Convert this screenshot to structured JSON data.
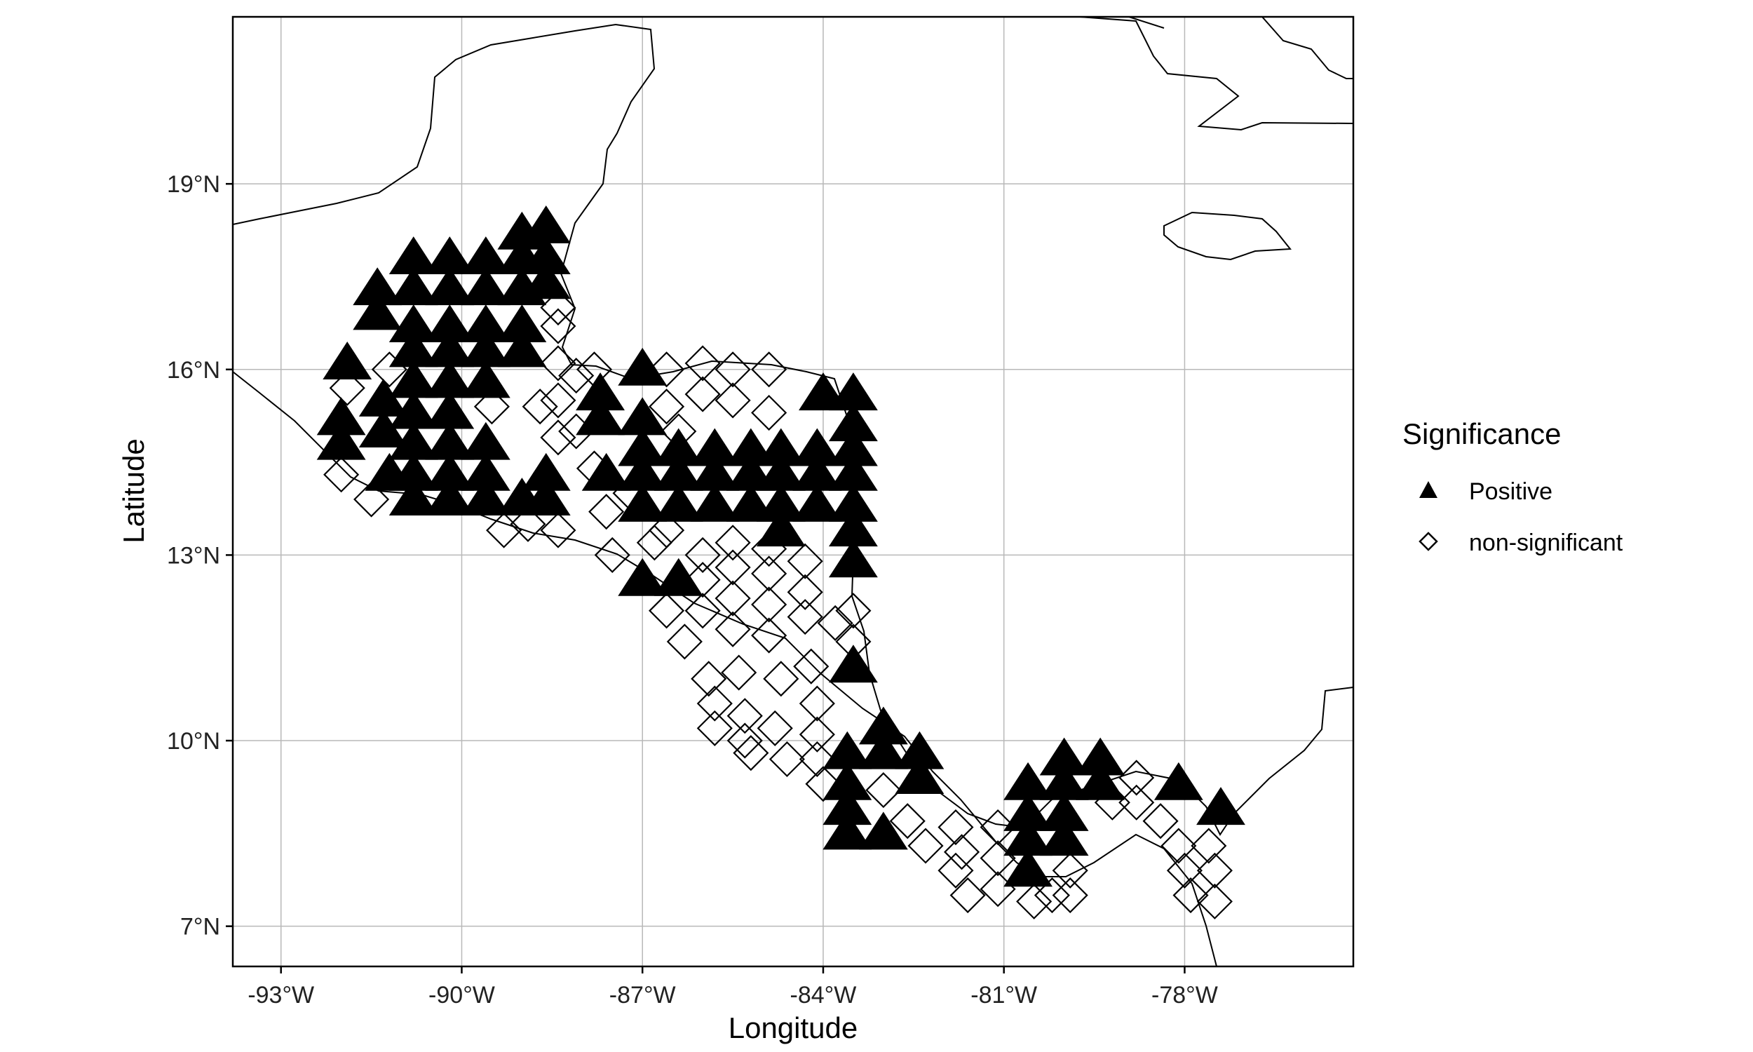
{
  "chart_data": {
    "type": "scatter",
    "map": true,
    "xlabel": "Longitude",
    "ylabel": "Latitude",
    "xlim": [
      -93.8,
      -75.2
    ],
    "ylim": [
      6.35,
      21.7
    ],
    "x_ticks": [
      -93,
      -90,
      -87,
      -84,
      -81,
      -78
    ],
    "x_tick_labels": [
      "-93°W",
      "-90°W",
      "-87°W",
      "-84°W",
      "-81°W",
      "-78°W"
    ],
    "y_ticks": [
      7,
      10,
      13,
      16,
      19
    ],
    "y_tick_labels": [
      "7°N",
      "10°N",
      "13°N",
      "16°N",
      "19°N"
    ],
    "grid": true,
    "legend": {
      "title": "Significance",
      "placement": "right",
      "entries": [
        {
          "label": "Positive",
          "shape": "filled-triangle"
        },
        {
          "label": "non-significant",
          "shape": "open-diamond"
        }
      ]
    },
    "marker_color": "#000000",
    "grid_color": "#b8b8b8",
    "series": [
      {
        "legend_label": "Positive",
        "shape": "triangle",
        "points": [
          [
            -91.9,
            16.1
          ],
          [
            -92.0,
            15.2
          ],
          [
            -92.0,
            14.8
          ],
          [
            -91.4,
            17.3
          ],
          [
            -91.4,
            16.9
          ],
          [
            -91.3,
            15.5
          ],
          [
            -91.3,
            15.0
          ],
          [
            -91.2,
            14.3
          ],
          [
            -90.8,
            17.8
          ],
          [
            -90.8,
            17.3
          ],
          [
            -90.8,
            16.7
          ],
          [
            -90.8,
            16.3
          ],
          [
            -90.8,
            15.8
          ],
          [
            -90.8,
            15.3
          ],
          [
            -90.8,
            14.8
          ],
          [
            -90.8,
            14.3
          ],
          [
            -90.8,
            13.9
          ],
          [
            -90.2,
            17.8
          ],
          [
            -90.2,
            17.3
          ],
          [
            -90.2,
            16.7
          ],
          [
            -90.2,
            16.3
          ],
          [
            -90.2,
            15.8
          ],
          [
            -90.2,
            15.3
          ],
          [
            -90.2,
            14.8
          ],
          [
            -90.2,
            14.3
          ],
          [
            -90.2,
            13.9
          ],
          [
            -89.6,
            17.8
          ],
          [
            -89.6,
            17.3
          ],
          [
            -89.6,
            16.7
          ],
          [
            -89.6,
            16.3
          ],
          [
            -89.6,
            15.8
          ],
          [
            -89.6,
            14.8
          ],
          [
            -89.6,
            14.3
          ],
          [
            -89.6,
            13.9
          ],
          [
            -89.0,
            18.2
          ],
          [
            -89.0,
            17.8
          ],
          [
            -89.0,
            17.3
          ],
          [
            -89.0,
            16.7
          ],
          [
            -89.0,
            16.3
          ],
          [
            -89.0,
            13.9
          ],
          [
            -88.6,
            18.3
          ],
          [
            -88.6,
            17.8
          ],
          [
            -88.6,
            17.4
          ],
          [
            -88.6,
            14.3
          ],
          [
            -88.6,
            13.9
          ],
          [
            -87.7,
            15.6
          ],
          [
            -87.7,
            15.2
          ],
          [
            -87.6,
            14.3
          ],
          [
            -87.0,
            16.0
          ],
          [
            -87.0,
            15.2
          ],
          [
            -87.0,
            14.7
          ],
          [
            -87.0,
            14.3
          ],
          [
            -87.0,
            13.8
          ],
          [
            -87.0,
            12.6
          ],
          [
            -86.4,
            14.7
          ],
          [
            -86.4,
            14.3
          ],
          [
            -86.4,
            13.8
          ],
          [
            -86.4,
            12.6
          ],
          [
            -85.8,
            14.7
          ],
          [
            -85.8,
            14.3
          ],
          [
            -85.8,
            13.8
          ],
          [
            -85.2,
            14.7
          ],
          [
            -85.2,
            14.3
          ],
          [
            -85.2,
            13.8
          ],
          [
            -84.7,
            14.7
          ],
          [
            -84.7,
            14.3
          ],
          [
            -84.7,
            13.8
          ],
          [
            -84.7,
            13.4
          ],
          [
            -84.1,
            14.7
          ],
          [
            -84.1,
            14.3
          ],
          [
            -84.1,
            13.8
          ],
          [
            -84.0,
            15.6
          ],
          [
            -83.5,
            15.6
          ],
          [
            -83.5,
            15.1
          ],
          [
            -83.5,
            14.7
          ],
          [
            -83.5,
            14.3
          ],
          [
            -83.5,
            13.8
          ],
          [
            -83.5,
            13.4
          ],
          [
            -83.5,
            12.9
          ],
          [
            -83.5,
            11.2
          ],
          [
            -83.6,
            9.8
          ],
          [
            -83.6,
            9.3
          ],
          [
            -83.6,
            8.9
          ],
          [
            -83.6,
            8.5
          ],
          [
            -83.0,
            10.2
          ],
          [
            -83.0,
            9.8
          ],
          [
            -83.0,
            8.5
          ],
          [
            -82.4,
            9.8
          ],
          [
            -82.4,
            9.4
          ],
          [
            -80.6,
            9.3
          ],
          [
            -80.6,
            8.8
          ],
          [
            -80.6,
            8.4
          ],
          [
            -80.6,
            7.9
          ],
          [
            -80.0,
            9.7
          ],
          [
            -80.0,
            9.3
          ],
          [
            -80.0,
            8.8
          ],
          [
            -80.0,
            8.4
          ],
          [
            -79.4,
            9.7
          ],
          [
            -79.4,
            9.3
          ],
          [
            -78.1,
            9.3
          ],
          [
            -77.4,
            8.9
          ]
        ]
      },
      {
        "legend_label": "non-significant",
        "shape": "diamond",
        "points": [
          [
            -91.9,
            15.7
          ],
          [
            -92.0,
            14.3
          ],
          [
            -91.5,
            13.9
          ],
          [
            -91.2,
            16.0
          ],
          [
            -89.5,
            15.4
          ],
          [
            -89.3,
            13.4
          ],
          [
            -88.9,
            13.5
          ],
          [
            -88.7,
            15.4
          ],
          [
            -88.4,
            17.0
          ],
          [
            -88.4,
            16.7
          ],
          [
            -88.4,
            16.1
          ],
          [
            -88.4,
            15.5
          ],
          [
            -88.4,
            14.9
          ],
          [
            -88.4,
            13.4
          ],
          [
            -88.1,
            15.9
          ],
          [
            -88.1,
            15.0
          ],
          [
            -87.8,
            16.0
          ],
          [
            -87.8,
            14.4
          ],
          [
            -87.6,
            13.7
          ],
          [
            -87.5,
            13.0
          ],
          [
            -87.2,
            14.0
          ],
          [
            -86.8,
            13.2
          ],
          [
            -86.6,
            16.0
          ],
          [
            -86.6,
            15.4
          ],
          [
            -86.6,
            13.4
          ],
          [
            -86.6,
            12.1
          ],
          [
            -86.4,
            15.0
          ],
          [
            -86.3,
            11.6
          ],
          [
            -86.0,
            16.1
          ],
          [
            -86.0,
            15.6
          ],
          [
            -86.0,
            13.0
          ],
          [
            -86.0,
            12.6
          ],
          [
            -86.0,
            12.1
          ],
          [
            -85.9,
            11.0
          ],
          [
            -85.8,
            10.6
          ],
          [
            -85.8,
            10.2
          ],
          [
            -85.5,
            16.0
          ],
          [
            -85.5,
            15.5
          ],
          [
            -85.5,
            13.2
          ],
          [
            -85.5,
            12.8
          ],
          [
            -85.5,
            12.3
          ],
          [
            -85.5,
            11.8
          ],
          [
            -85.4,
            11.1
          ],
          [
            -85.3,
            10.4
          ],
          [
            -85.3,
            10.0
          ],
          [
            -85.2,
            9.8
          ],
          [
            -84.9,
            16.0
          ],
          [
            -84.9,
            15.3
          ],
          [
            -84.9,
            13.1
          ],
          [
            -84.9,
            12.7
          ],
          [
            -84.9,
            12.2
          ],
          [
            -84.9,
            11.7
          ],
          [
            -84.7,
            11.0
          ],
          [
            -84.8,
            10.2
          ],
          [
            -84.6,
            9.7
          ],
          [
            -84.3,
            12.9
          ],
          [
            -84.3,
            12.4
          ],
          [
            -84.3,
            12.0
          ],
          [
            -84.2,
            11.2
          ],
          [
            -84.1,
            10.6
          ],
          [
            -84.1,
            10.1
          ],
          [
            -84.1,
            9.7
          ],
          [
            -84.0,
            9.3
          ],
          [
            -83.8,
            11.9
          ],
          [
            -83.5,
            12.1
          ],
          [
            -83.5,
            11.6
          ],
          [
            -83.0,
            9.2
          ],
          [
            -82.6,
            8.7
          ],
          [
            -82.3,
            8.3
          ],
          [
            -81.8,
            8.6
          ],
          [
            -81.7,
            8.2
          ],
          [
            -81.8,
            7.9
          ],
          [
            -81.6,
            7.5
          ],
          [
            -81.1,
            8.6
          ],
          [
            -81.1,
            8.1
          ],
          [
            -81.1,
            7.6
          ],
          [
            -80.5,
            7.4
          ],
          [
            -80.2,
            7.5
          ],
          [
            -79.9,
            7.5
          ],
          [
            -79.9,
            7.9
          ],
          [
            -79.2,
            9.0
          ],
          [
            -78.8,
            9.4
          ],
          [
            -78.8,
            9.0
          ],
          [
            -78.4,
            8.7
          ],
          [
            -78.1,
            8.3
          ],
          [
            -78.0,
            7.9
          ],
          [
            -77.9,
            7.5
          ],
          [
            -77.6,
            8.3
          ],
          [
            -77.5,
            7.9
          ],
          [
            -77.5,
            7.4
          ]
        ]
      }
    ]
  }
}
